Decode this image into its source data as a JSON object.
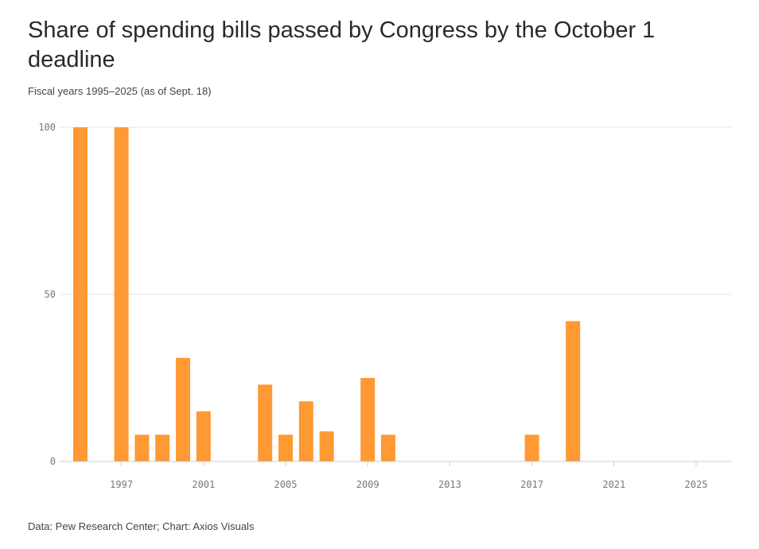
{
  "title": "Share of spending bills passed by Congress by the October 1 deadline",
  "subtitle": "Fiscal years 1995–2025 (as of Sept. 18)",
  "source": "Data: Pew Research Center; Chart: Axios Visuals",
  "colors": {
    "bar": "#ff9933",
    "grid": "#e6e6e6",
    "axis": "#cccccc"
  },
  "chart_data": {
    "type": "bar",
    "title": "Share of spending bills passed by Congress by the October 1 deadline",
    "subtitle": "Fiscal years 1995–2025 (as of Sept. 18)",
    "xlabel": "",
    "ylabel": "",
    "ylim": [
      0,
      100
    ],
    "yticks": [
      0,
      50,
      100
    ],
    "xticks": [
      1997,
      2001,
      2005,
      2009,
      2013,
      2017,
      2021,
      2025
    ],
    "grid": true,
    "categories": [
      1995,
      1996,
      1997,
      1998,
      1999,
      2000,
      2001,
      2002,
      2003,
      2004,
      2005,
      2006,
      2007,
      2008,
      2009,
      2010,
      2011,
      2012,
      2013,
      2014,
      2015,
      2016,
      2017,
      2018,
      2019,
      2020,
      2021,
      2022,
      2023,
      2024,
      2025
    ],
    "values": [
      100,
      0,
      100,
      8,
      8,
      31,
      15,
      0,
      0,
      23,
      8,
      18,
      9,
      0,
      25,
      8,
      0,
      0,
      0,
      0,
      0,
      0,
      8,
      0,
      42,
      0,
      0,
      0,
      0,
      0,
      0
    ]
  }
}
